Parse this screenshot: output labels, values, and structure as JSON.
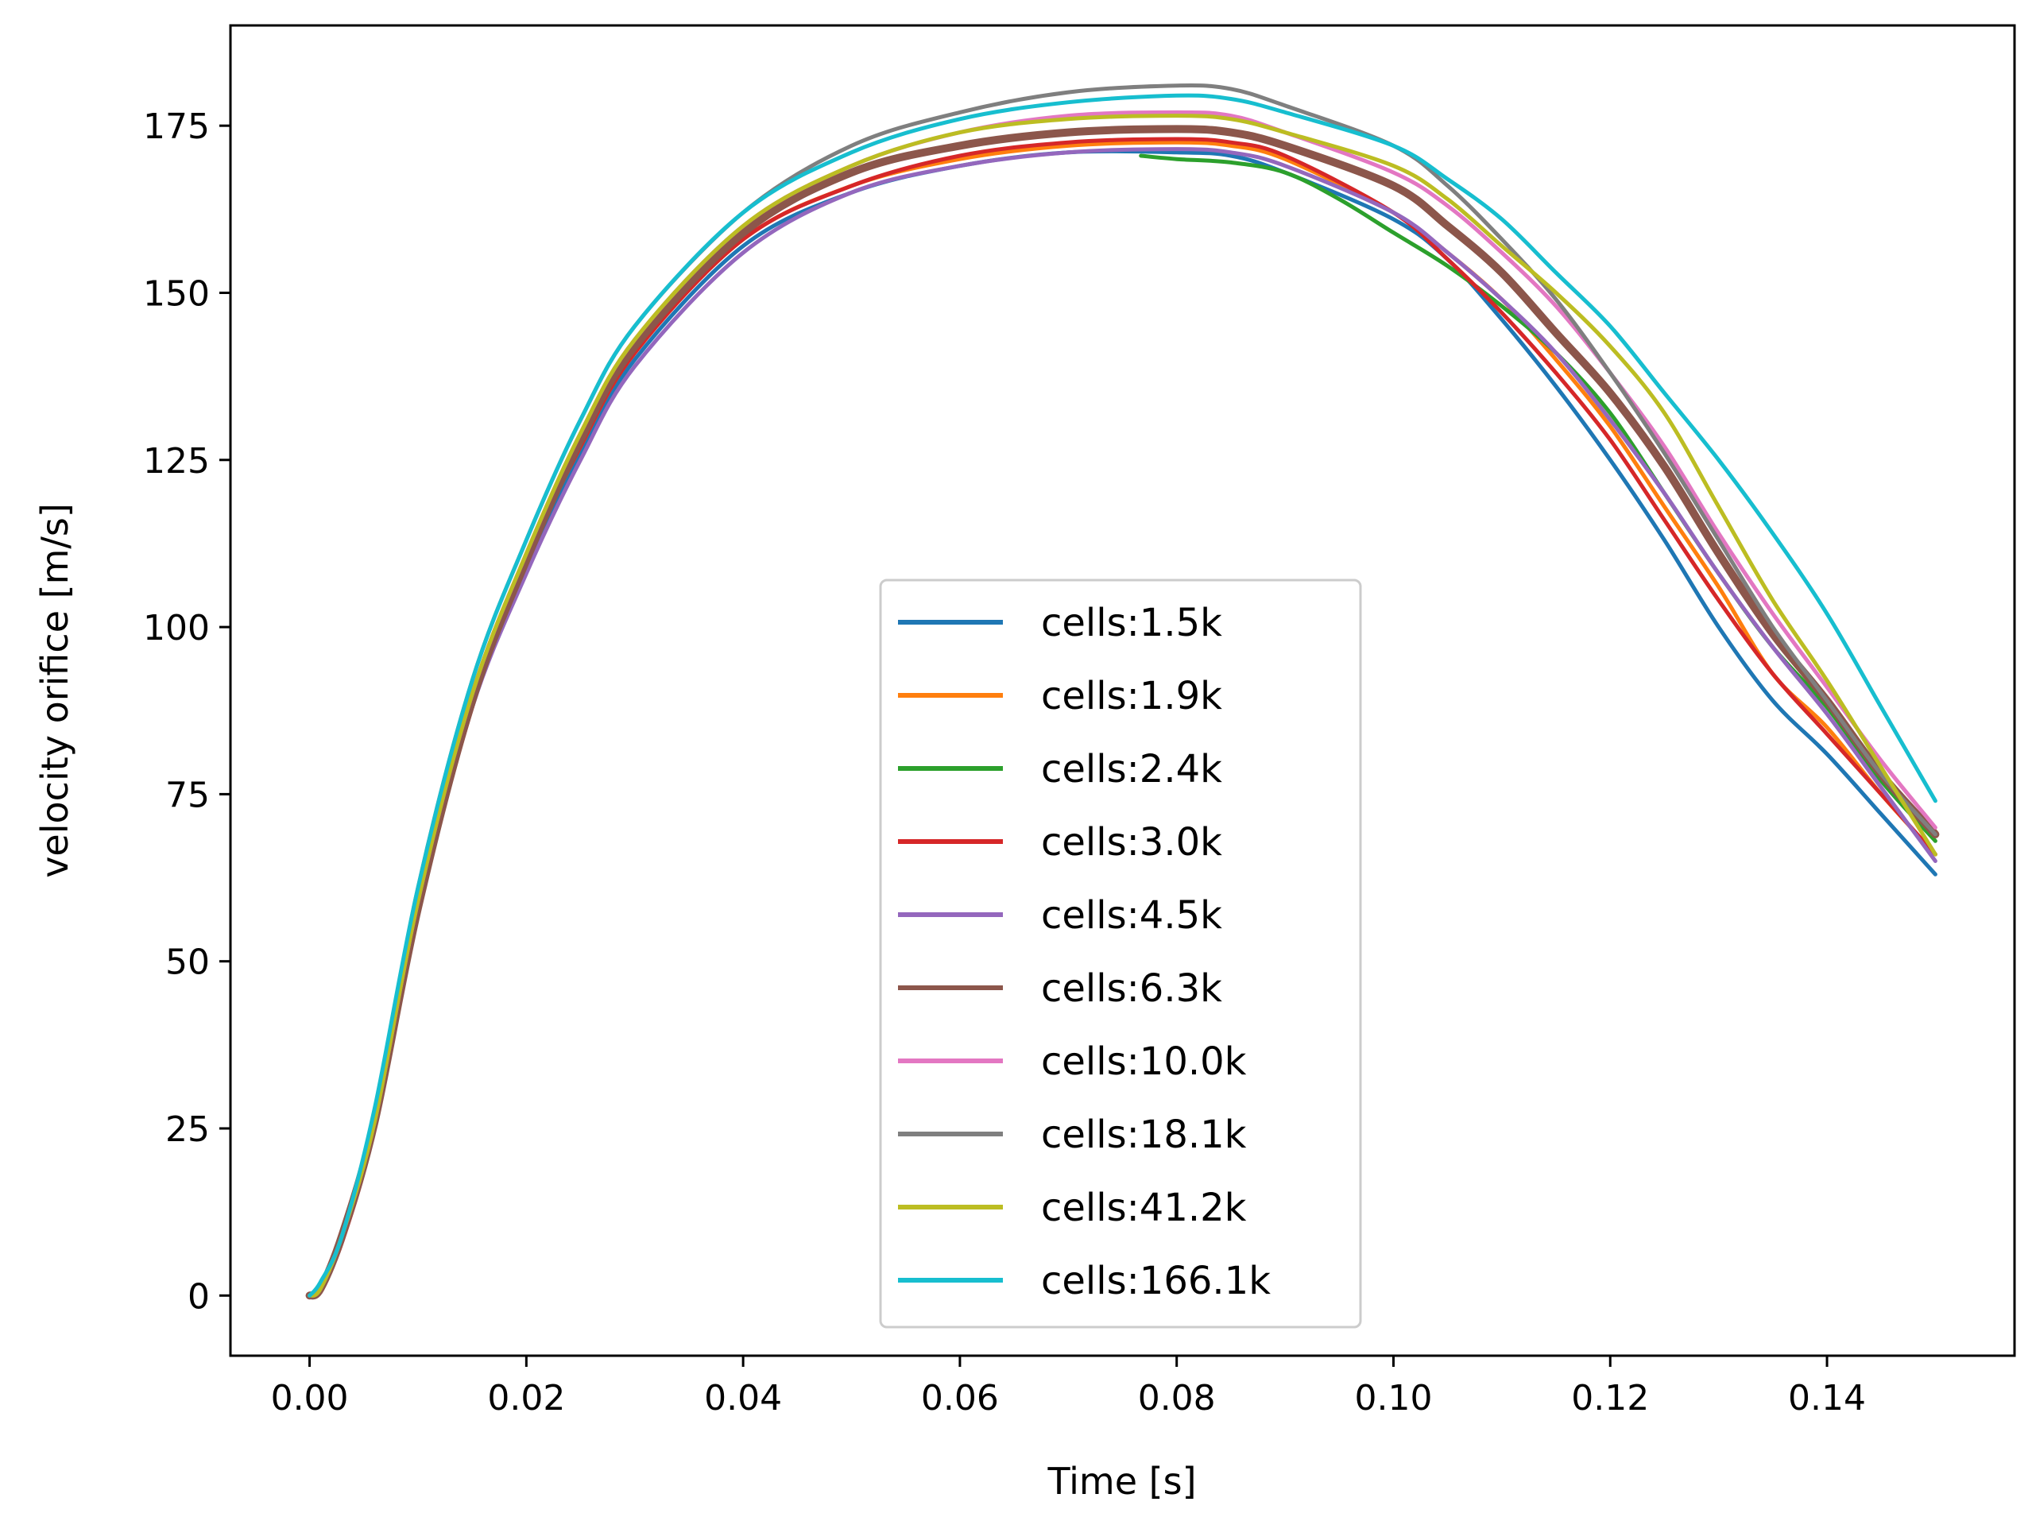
{
  "chart_data": {
    "type": "line",
    "title": "",
    "xlabel": "Time [s]",
    "ylabel": "velocity orifice [m/s]",
    "xlim": [
      -0.0073,
      0.1573
    ],
    "ylim": [
      -9,
      190
    ],
    "xticks": [
      0.0,
      0.02,
      0.04,
      0.06,
      0.08,
      0.1,
      0.12,
      0.14
    ],
    "xtick_labels": [
      "0.00",
      "0.02",
      "0.04",
      "0.06",
      "0.08",
      "0.10",
      "0.12",
      "0.14"
    ],
    "yticks": [
      0,
      25,
      50,
      75,
      100,
      125,
      150,
      175
    ],
    "ytick_labels": [
      "0",
      "25",
      "50",
      "75",
      "100",
      "125",
      "150",
      "175"
    ],
    "grid": false,
    "legend_position": "lower-center",
    "series": [
      {
        "name": "cells:1.5k",
        "color": "#1f77b4",
        "start": 0.0,
        "x": [
          0.001,
          0.003,
          0.006,
          0.01,
          0.015,
          0.02,
          0.025,
          0.03,
          0.04,
          0.05,
          0.06,
          0.07,
          0.08,
          0.085,
          0.09,
          0.1,
          0.105,
          0.11,
          0.115,
          0.12,
          0.125,
          0.13,
          0.135,
          0.14,
          0.145,
          0.15
        ],
        "y": [
          1,
          9,
          26,
          58,
          88,
          109,
          126,
          140,
          157,
          165,
          169,
          171,
          171,
          170.5,
          168,
          161,
          155,
          146,
          136,
          125,
          113,
          100,
          89,
          81,
          72,
          63
        ]
      },
      {
        "name": "cells:1.9k",
        "color": "#ff7f0e",
        "start": 0.0,
        "x": [
          0.001,
          0.003,
          0.006,
          0.01,
          0.015,
          0.02,
          0.025,
          0.03,
          0.04,
          0.05,
          0.06,
          0.07,
          0.08,
          0.085,
          0.09,
          0.1,
          0.105,
          0.11,
          0.115,
          0.12,
          0.125,
          0.13,
          0.135,
          0.14,
          0.145,
          0.15
        ],
        "y": [
          1,
          9,
          26,
          58,
          88,
          110,
          127,
          141,
          158,
          166,
          170,
          172,
          172.5,
          172,
          170,
          162,
          156,
          149,
          140,
          130,
          118,
          106,
          93,
          85,
          75,
          66
        ]
      },
      {
        "name": "cells:2.4k",
        "color": "#2ca02c",
        "start": 0.0767,
        "x": [
          0.0767,
          0.08,
          0.085,
          0.09,
          0.095,
          0.1,
          0.105,
          0.11,
          0.115,
          0.12,
          0.125,
          0.13,
          0.135,
          0.14,
          0.145,
          0.15
        ],
        "y": [
          170.5,
          170,
          169.5,
          168,
          164,
          159,
          154,
          148,
          141,
          132,
          120,
          108,
          97,
          88,
          77,
          68
        ]
      },
      {
        "name": "cells:3.0k",
        "color": "#d62728",
        "start": 0.0,
        "x": [
          0.001,
          0.003,
          0.006,
          0.01,
          0.015,
          0.02,
          0.025,
          0.03,
          0.04,
          0.05,
          0.06,
          0.07,
          0.08,
          0.085,
          0.09,
          0.1,
          0.105,
          0.11,
          0.115,
          0.12,
          0.125,
          0.13,
          0.135,
          0.14,
          0.145,
          0.15
        ],
        "y": [
          1,
          8,
          25,
          57,
          88,
          110,
          127,
          141,
          158,
          166,
          170.5,
          172.5,
          173,
          172.5,
          170.5,
          162,
          155,
          147,
          138,
          128,
          116,
          104,
          93,
          84,
          75,
          66
        ]
      },
      {
        "name": "cells:4.5k",
        "color": "#9467bd",
        "start": 0.0,
        "x": [
          0.001,
          0.003,
          0.006,
          0.01,
          0.015,
          0.02,
          0.025,
          0.03,
          0.04,
          0.05,
          0.06,
          0.07,
          0.08,
          0.085,
          0.09,
          0.1,
          0.105,
          0.11,
          0.115,
          0.12,
          0.125,
          0.13,
          0.135,
          0.14,
          0.145,
          0.15
        ],
        "y": [
          1,
          9,
          26,
          58,
          88,
          108,
          125,
          139,
          156,
          165,
          169,
          171,
          171.5,
          171,
          169,
          162,
          156,
          149,
          141,
          131,
          120,
          108,
          97,
          87,
          76,
          65
        ]
      },
      {
        "name": "cells:6.3k",
        "color": "#8c564b",
        "start": 0.0,
        "x": [
          0.001,
          0.003,
          0.006,
          0.01,
          0.015,
          0.02,
          0.025,
          0.03,
          0.04,
          0.05,
          0.06,
          0.07,
          0.08,
          0.085,
          0.09,
          0.1,
          0.105,
          0.11,
          0.115,
          0.12,
          0.125,
          0.13,
          0.135,
          0.14,
          0.145,
          0.15
        ],
        "y": [
          1,
          9,
          26,
          58,
          89,
          110,
          128,
          142,
          159,
          168,
          172,
          174,
          174.5,
          174,
          172,
          166,
          160,
          153,
          144,
          135,
          124,
          111,
          99,
          89,
          78,
          69
        ]
      },
      {
        "name": "cells:10.0k",
        "color": "#e377c2",
        "start": 0.0,
        "x": [
          0.001,
          0.003,
          0.006,
          0.01,
          0.015,
          0.02,
          0.025,
          0.03,
          0.04,
          0.05,
          0.06,
          0.07,
          0.08,
          0.085,
          0.09,
          0.1,
          0.105,
          0.11,
          0.115,
          0.12,
          0.125,
          0.13,
          0.135,
          0.14,
          0.145,
          0.15
        ],
        "y": [
          1,
          9,
          26,
          59,
          90,
          111,
          129,
          143,
          160,
          169,
          174,
          176.5,
          177,
          176.5,
          174,
          168,
          163,
          156,
          148,
          138,
          127,
          114,
          102,
          91,
          80,
          70
        ]
      },
      {
        "name": "cells:18.1k",
        "color": "#7f7f7f",
        "start": 0.0,
        "x": [
          0.001,
          0.003,
          0.006,
          0.01,
          0.015,
          0.02,
          0.025,
          0.03,
          0.04,
          0.05,
          0.06,
          0.07,
          0.08,
          0.085,
          0.09,
          0.1,
          0.105,
          0.11,
          0.115,
          0.12,
          0.125,
          0.13,
          0.135,
          0.14,
          0.145,
          0.15
        ],
        "y": [
          1,
          9,
          27,
          61,
          92,
          113,
          131,
          145,
          162,
          172,
          177,
          180,
          181,
          180.5,
          178,
          172,
          166,
          158,
          149,
          138,
          126,
          113,
          100,
          89,
          78,
          69
        ]
      },
      {
        "name": "cells:41.2k",
        "color": "#bcbd22",
        "start": 0.0,
        "x": [
          0.001,
          0.003,
          0.006,
          0.01,
          0.015,
          0.02,
          0.025,
          0.03,
          0.04,
          0.05,
          0.06,
          0.07,
          0.08,
          0.085,
          0.09,
          0.1,
          0.105,
          0.11,
          0.115,
          0.12,
          0.125,
          0.13,
          0.135,
          0.14,
          0.145,
          0.15
        ],
        "y": [
          1,
          9,
          26,
          59,
          90,
          111,
          129,
          143,
          160,
          169,
          174,
          176,
          176.5,
          176,
          174,
          169,
          164,
          157,
          150,
          142,
          132,
          118,
          104,
          92,
          79,
          66
        ]
      },
      {
        "name": "cells:166.1k",
        "color": "#17becf",
        "start": 0.0,
        "x": [
          0.001,
          0.003,
          0.006,
          0.01,
          0.015,
          0.02,
          0.025,
          0.03,
          0.04,
          0.05,
          0.06,
          0.07,
          0.08,
          0.085,
          0.09,
          0.1,
          0.105,
          0.11,
          0.115,
          0.12,
          0.125,
          0.13,
          0.135,
          0.14,
          0.145,
          0.15
        ],
        "y": [
          2,
          9,
          28,
          61,
          92,
          113,
          131,
          145,
          162,
          171,
          176,
          178.5,
          179.5,
          179,
          177,
          172,
          167,
          161,
          153,
          145,
          135,
          125,
          114,
          102,
          88,
          74
        ]
      }
    ]
  }
}
